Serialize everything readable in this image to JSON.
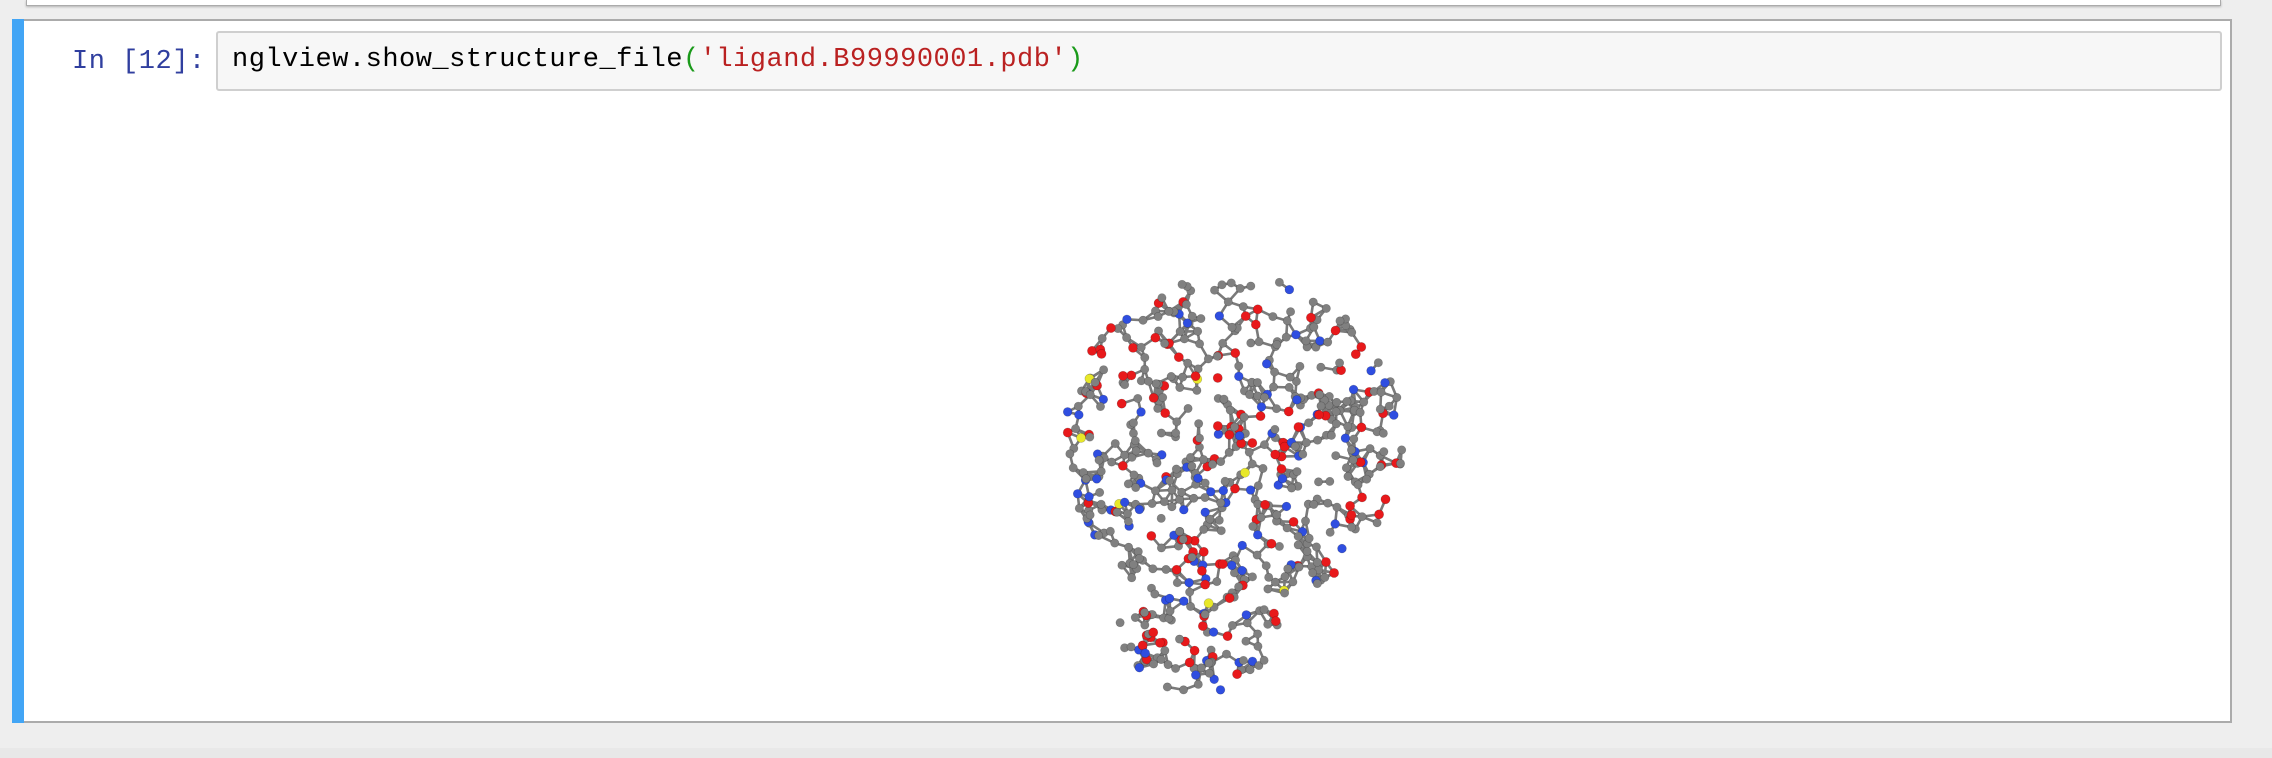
{
  "cell": {
    "prompt": "In [12]:",
    "code": {
      "call": "nglview.show_structure_file",
      "open_paren": "(",
      "argument": "'ligand.B99990001.pdb'",
      "close_paren": ")"
    }
  },
  "output": {
    "widget": "nglview-molecule-viewer",
    "representation": "ball-and-stick",
    "colors": {
      "carbon": "#808080",
      "oxygen": "#e8191b",
      "nitrogen": "#2f4ee0",
      "sulfur": "#e8e82a"
    }
  },
  "theme": {
    "selected_bar": "#42a5f5",
    "prompt_color": "#303f9f",
    "string_color": "#ba2121",
    "paren_color": "#1a9a1a"
  }
}
